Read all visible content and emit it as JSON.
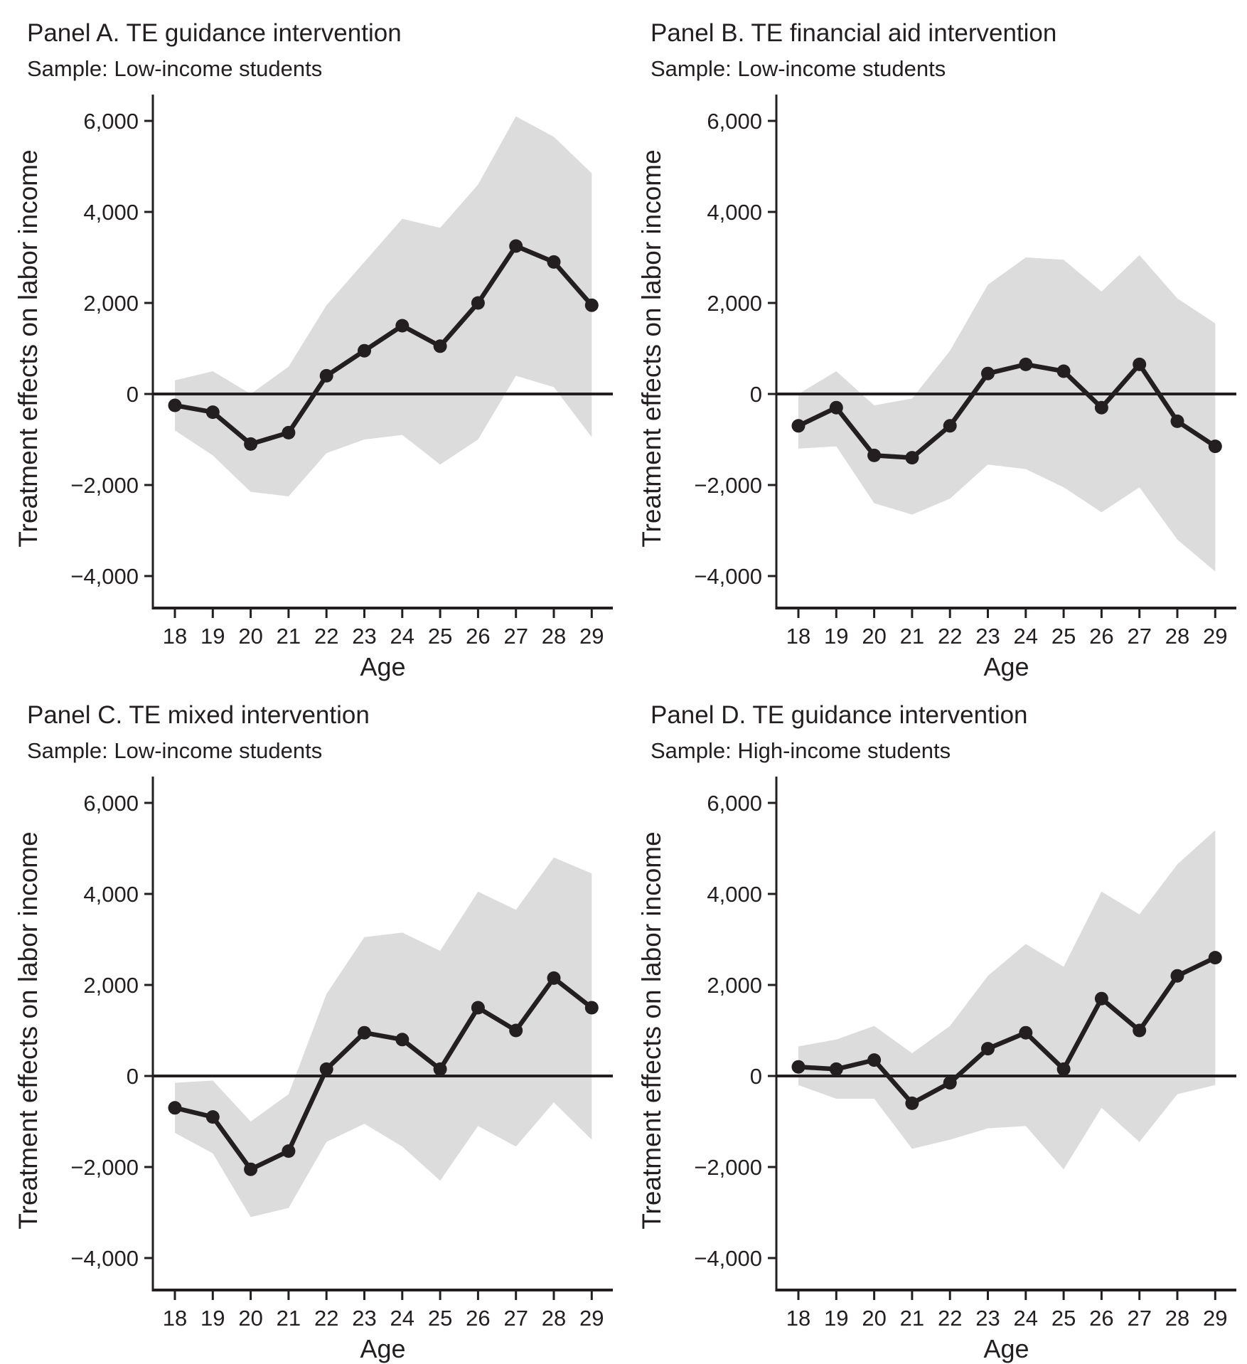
{
  "figure": {
    "background_color": "#ffffff",
    "ink_color": "#231f20",
    "band_color": "#dcdcdc"
  },
  "chart_data": [
    {
      "type": "line",
      "panel": "A",
      "title": "Panel A. TE guidance intervention",
      "sample": "Sample: Low-income students",
      "xlabel": "Age",
      "ylabel": "Treatment effects on labor income",
      "legend_position": "none",
      "grid": false,
      "band_style": "shaded confidence interval",
      "ylim": [
        -4700,
        6580
      ],
      "yticks": [
        6000,
        4000,
        2000,
        0,
        -2000,
        -4000
      ],
      "ytick_labels": [
        "6,000",
        "4,000",
        "2,000",
        "0",
        "−2,000",
        "−4,000"
      ],
      "zero_reference_line": 0,
      "x": [
        18,
        19,
        20,
        21,
        22,
        23,
        24,
        25,
        26,
        27,
        28,
        29
      ],
      "values": [
        -250,
        -400,
        -1100,
        -850,
        400,
        950,
        1500,
        1050,
        2000,
        3250,
        2900,
        1950
      ],
      "ci_upper": [
        300,
        500,
        0,
        600,
        1950,
        2900,
        3850,
        3650,
        4600,
        6100,
        5650,
        4850
      ],
      "ci_lower": [
        -800,
        -1350,
        -2150,
        -2250,
        -1300,
        -1000,
        -900,
        -1550,
        -1000,
        400,
        150,
        -950
      ]
    },
    {
      "type": "line",
      "panel": "B",
      "title": "Panel B. TE financial aid intervention",
      "sample": "Sample: Low-income students",
      "xlabel": "Age",
      "ylabel": "Treatment effects on labor income",
      "legend_position": "none",
      "grid": false,
      "band_style": "shaded confidence interval",
      "ylim": [
        -4700,
        6580
      ],
      "yticks": [
        6000,
        4000,
        2000,
        0,
        -2000,
        -4000
      ],
      "ytick_labels": [
        "6,000",
        "4,000",
        "2,000",
        "0",
        "−2,000",
        "−4,000"
      ],
      "zero_reference_line": 0,
      "x": [
        18,
        19,
        20,
        21,
        22,
        23,
        24,
        25,
        26,
        27,
        28,
        29
      ],
      "values": [
        -700,
        -300,
        -1350,
        -1400,
        -700,
        450,
        650,
        500,
        -300,
        650,
        -600,
        -1150
      ],
      "ci_upper": [
        0,
        500,
        -250,
        -100,
        950,
        2400,
        3000,
        2950,
        2250,
        3050,
        2100,
        1550
      ],
      "ci_lower": [
        -1200,
        -1150,
        -2400,
        -2650,
        -2300,
        -1550,
        -1650,
        -2050,
        -2600,
        -2050,
        -3200,
        -3900
      ]
    },
    {
      "type": "line",
      "panel": "C",
      "title": "Panel C. TE mixed intervention",
      "sample": "Sample: Low-income students",
      "xlabel": "Age",
      "ylabel": "Treatment effects on labor income",
      "legend_position": "none",
      "grid": false,
      "band_style": "shaded confidence interval",
      "ylim": [
        -4700,
        6580
      ],
      "yticks": [
        6000,
        4000,
        2000,
        0,
        -2000,
        -4000
      ],
      "ytick_labels": [
        "6,000",
        "4,000",
        "2,000",
        "0",
        "−2,000",
        "−4,000"
      ],
      "zero_reference_line": 0,
      "x": [
        18,
        19,
        20,
        21,
        22,
        23,
        24,
        25,
        26,
        27,
        28,
        29
      ],
      "values": [
        -700,
        -900,
        -2050,
        -1650,
        150,
        950,
        800,
        150,
        1500,
        1000,
        2150,
        1500
      ],
      "ci_upper": [
        -150,
        -100,
        -1000,
        -400,
        1800,
        3050,
        3150,
        2750,
        4050,
        3650,
        4800,
        4450
      ],
      "ci_lower": [
        -1250,
        -1700,
        -3100,
        -2900,
        -1450,
        -1050,
        -1550,
        -2300,
        -1100,
        -1550,
        -580,
        -1400
      ]
    },
    {
      "type": "line",
      "panel": "D",
      "title": "Panel D. TE guidance intervention",
      "sample": "Sample: High-income students",
      "xlabel": "Age",
      "ylabel": "Treatment effects on labor income",
      "legend_position": "none",
      "grid": false,
      "band_style": "shaded confidence interval",
      "ylim": [
        -4700,
        6580
      ],
      "yticks": [
        6000,
        4000,
        2000,
        0,
        -2000,
        -4000
      ],
      "ytick_labels": [
        "6,000",
        "4,000",
        "2,000",
        "0",
        "−2,000",
        "−4,000"
      ],
      "zero_reference_line": 0,
      "x": [
        18,
        19,
        20,
        21,
        22,
        23,
        24,
        25,
        26,
        27,
        28,
        29
      ],
      "values": [
        200,
        150,
        350,
        -600,
        -150,
        600,
        950,
        150,
        1700,
        1000,
        2200,
        2600
      ],
      "ci_upper": [
        650,
        800,
        1100,
        500,
        1100,
        2200,
        2900,
        2400,
        4050,
        3550,
        4650,
        5400
      ],
      "ci_lower": [
        -200,
        -500,
        -500,
        -1600,
        -1400,
        -1150,
        -1100,
        -2050,
        -700,
        -1450,
        -400,
        -200
      ]
    }
  ]
}
